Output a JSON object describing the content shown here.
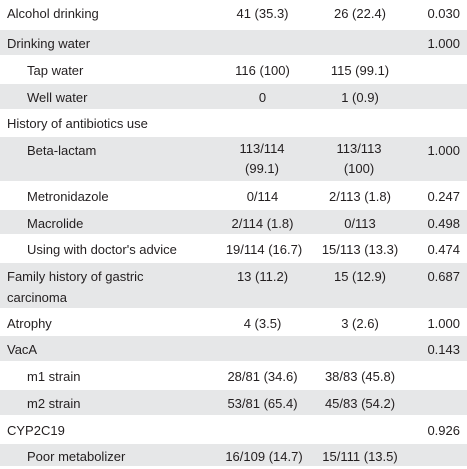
{
  "rows": [
    {
      "label": "Alcohol drinking",
      "indent": false,
      "c1": "41 (35.3)",
      "c2": "26 (22.4)",
      "p": "0.030",
      "shaded": false
    },
    {
      "label": "Drinking water",
      "indent": false,
      "c1": "",
      "c2": "",
      "p": "1.000",
      "shaded": true
    },
    {
      "label": "Tap water",
      "indent": true,
      "c1": "116 (100)",
      "c2": "115 (99.1)",
      "p": "",
      "shaded": false
    },
    {
      "label": "Well water",
      "indent": true,
      "c1": "0",
      "c2": "1 (0.9)",
      "p": "",
      "shaded": true
    },
    {
      "label": "History of antibiotics use",
      "indent": false,
      "c1": "",
      "c2": "",
      "p": "",
      "shaded": false
    },
    {
      "label": "Beta-lactam",
      "indent": true,
      "c1": "113/114 (99.1)",
      "c2": "113/113 (100)",
      "p": "1.000",
      "shaded": true
    },
    {
      "label": "Metronidazole",
      "indent": true,
      "c1": "0/114",
      "c2": "2/113 (1.8)",
      "p": "0.247",
      "shaded": false
    },
    {
      "label": "Macrolide",
      "indent": true,
      "c1": "2/114 (1.8)",
      "c2": "0/113",
      "p": "0.498",
      "shaded": true
    },
    {
      "label": "Using with doctor's advice",
      "indent": true,
      "c1": "19/114 (16.7)",
      "c2": "15/113 (13.3)",
      "p": "0.474",
      "shaded": false
    },
    {
      "label": "Family history of gastric carcinoma",
      "indent": false,
      "c1": "13 (11.2)",
      "c2": "15 (12.9)",
      "p": "0.687",
      "shaded": true
    },
    {
      "label": "Atrophy",
      "indent": false,
      "c1": "4 (3.5)",
      "c2": "3 (2.6)",
      "p": "1.000",
      "shaded": false
    },
    {
      "label": "VacA",
      "indent": false,
      "c1": "",
      "c2": "",
      "p": "0.143",
      "shaded": true
    },
    {
      "label": "m1 strain",
      "indent": true,
      "c1": "28/81 (34.6)",
      "c2": "38/83 (45.8)",
      "p": "",
      "shaded": false
    },
    {
      "label": "m2 strain",
      "indent": true,
      "c1": "53/81 (65.4)",
      "c2": "45/83 (54.2)",
      "p": "",
      "shaded": true
    },
    {
      "label": "CYP2C19",
      "indent": false,
      "c1": "",
      "c2": "",
      "p": "0.926",
      "shaded": false
    },
    {
      "label": "Poor metabolizer",
      "indent": true,
      "c1": "16/109 (14.7)",
      "c2": "15/111 (13.5)",
      "p": "",
      "shaded": true
    }
  ]
}
